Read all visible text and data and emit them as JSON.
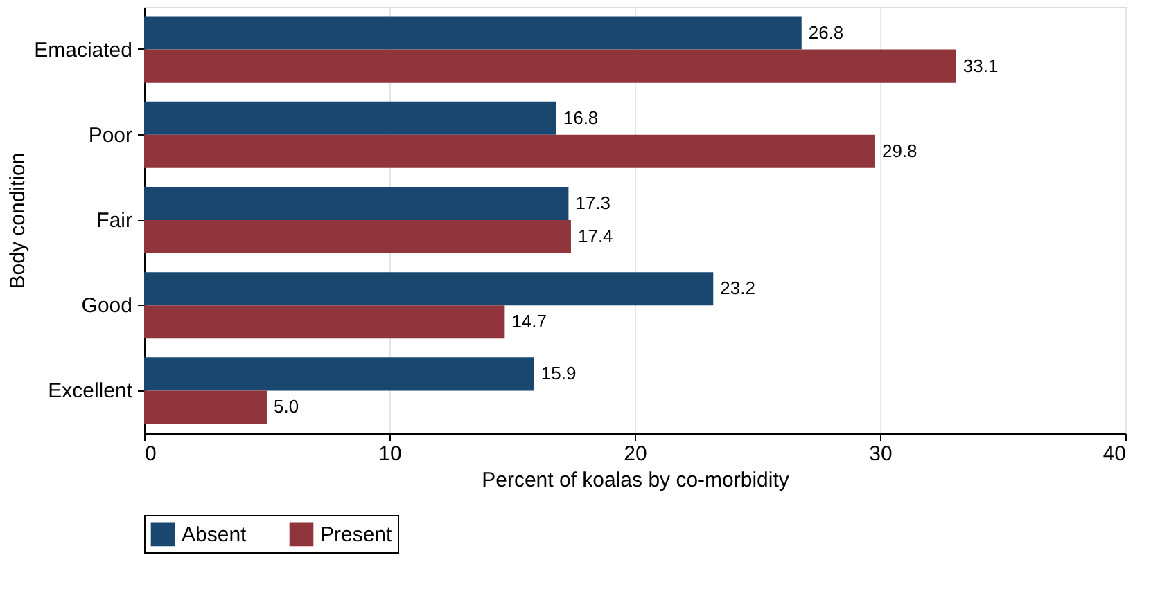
{
  "chart_data": {
    "type": "bar",
    "orientation": "horizontal",
    "xlabel": "Percent of koalas by co-morbidity",
    "ylabel": "Body condition",
    "categories": [
      "Emaciated",
      "Poor",
      "Fair",
      "Good",
      "Excellent"
    ],
    "series": [
      {
        "name": "Absent",
        "color": "#1a476f",
        "values": [
          26.8,
          16.8,
          17.3,
          23.2,
          15.9
        ],
        "value_labels": [
          "26.8",
          "16.8",
          "17.3",
          "23.2",
          "15.9"
        ]
      },
      {
        "name": "Present",
        "color": "#90353b",
        "values": [
          33.1,
          29.8,
          17.4,
          14.7,
          5.0
        ],
        "value_labels": [
          "33.1",
          "29.8",
          "17.4",
          "14.7",
          "5.0"
        ]
      }
    ],
    "xlim": [
      0,
      40
    ],
    "xticks": [
      0,
      10,
      20,
      30,
      40
    ],
    "grid": "x",
    "legend": "bottom"
  }
}
